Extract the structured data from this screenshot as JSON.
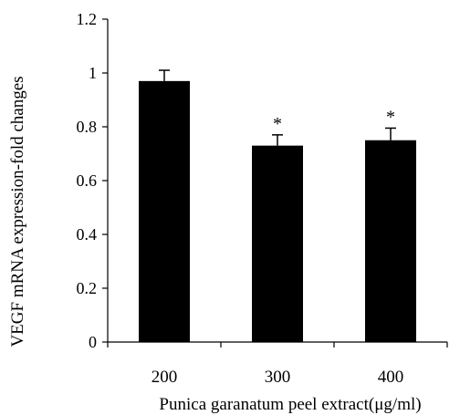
{
  "chart_data": {
    "type": "bar",
    "title": "",
    "xlabel": "Punica garanatum peel extract(μg/ml)",
    "ylabel": "VEGF mRNA expression-fold changes",
    "categories": [
      "200",
      "300",
      "400"
    ],
    "values": [
      0.97,
      0.73,
      0.75
    ],
    "errors": [
      0.04,
      0.04,
      0.045
    ],
    "annotations": [
      "",
      "*",
      "*"
    ],
    "ylim": [
      0,
      1.2
    ],
    "yticks": [
      0,
      0.2,
      0.4,
      0.6,
      0.8,
      1,
      1.2
    ],
    "ytick_labels": [
      "0",
      "0.2",
      "0.4",
      "0.6",
      "0.8",
      "1",
      "1.2"
    ],
    "grid": false,
    "colors": {
      "bar": "#000000",
      "axis": "#000000"
    }
  }
}
